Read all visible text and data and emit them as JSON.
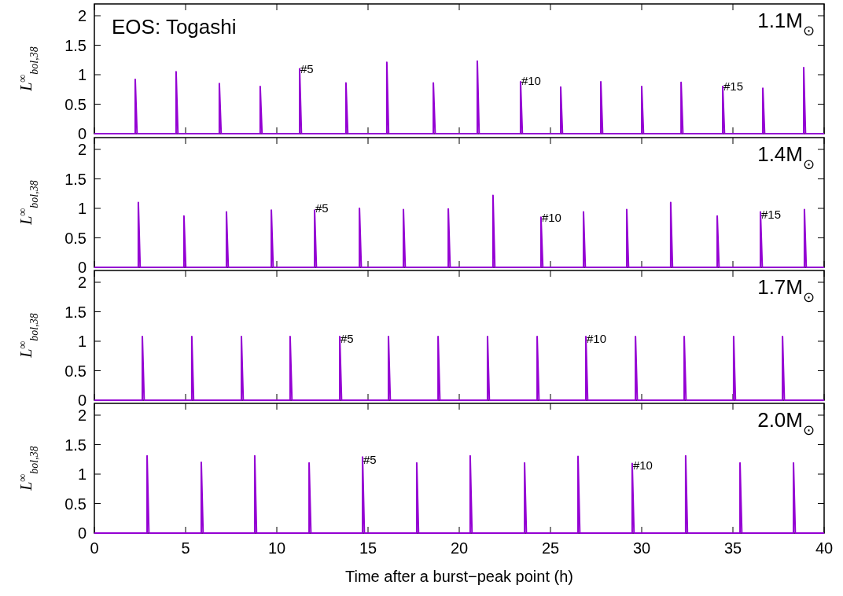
{
  "chart_data": [
    {
      "type": "line",
      "title": "1.1M$_{⊙}$",
      "ylabel": "L$^{∞}$$_{bol,38}$",
      "annotations": [
        "EOS: Togashi",
        {
          "text": "#5",
          "x": 11.25,
          "y": 1.1
        },
        {
          "text": "#10",
          "x": 23.36,
          "y": 0.9
        },
        {
          "text": "#15",
          "x": 34.44,
          "y": 0.8
        }
      ],
      "xlim": [
        0,
        40
      ],
      "ylim": [
        0,
        2.2
      ],
      "xticks": [
        0,
        5,
        10,
        15,
        20,
        25,
        30,
        35,
        40
      ],
      "yticks": [
        0,
        0.5,
        1,
        1.5,
        2
      ],
      "tick_labels": "y",
      "series": [
        {
          "color": "#9400d3",
          "x": [
            0,
            2.24,
            2.24,
            2.34,
            4.48,
            4.48,
            4.58,
            6.85,
            6.85,
            6.95,
            9.09,
            9.09,
            9.19,
            11.25,
            11.25,
            11.35,
            13.79,
            13.79,
            13.89,
            16.03,
            16.03,
            16.13,
            18.58,
            18.58,
            18.68,
            20.99,
            20.99,
            21.09,
            23.36,
            23.36,
            23.46,
            25.56,
            25.56,
            25.66,
            27.76,
            27.76,
            27.86,
            30,
            30,
            30.1,
            32.16,
            32.16,
            32.26,
            34.44,
            34.44,
            34.54,
            36.64,
            36.64,
            36.74,
            38.88,
            38.88,
            38.98,
            40
          ],
          "values": [
            0,
            0,
            0.92,
            0,
            0,
            1.05,
            0,
            0,
            0.85,
            0,
            0,
            0.8,
            0,
            0,
            1.1,
            0,
            0,
            0.86,
            0,
            0,
            1.21,
            0,
            0,
            0.86,
            0,
            0,
            1.23,
            0,
            0,
            0.88,
            0,
            0,
            0.79,
            0,
            0,
            0.88,
            0,
            0,
            0.8,
            0,
            0,
            0.87,
            0,
            0,
            0.8,
            0,
            0,
            0.77,
            0,
            0,
            1.12,
            0,
            0
          ]
        }
      ]
    },
    {
      "type": "line",
      "title": "1.4M$_{⊙}$",
      "ylabel": "L$^{∞}$$_{bol,38}$",
      "annotations": [
        {
          "text": "#5",
          "x": 12.07,
          "y": 1.0
        },
        {
          "text": "#10",
          "x": 24.48,
          "y": 0.85
        },
        {
          "text": "#15",
          "x": 36.51,
          "y": 0.9
        }
      ],
      "xlim": [
        0,
        40
      ],
      "ylim": [
        0,
        2.2
      ],
      "xticks": [
        0,
        5,
        10,
        15,
        20,
        25,
        30,
        35,
        40
      ],
      "yticks": [
        0,
        0.5,
        1,
        1.5,
        2
      ],
      "tick_labels": "y",
      "series": [
        {
          "color": "#9400d3",
          "x": [
            0,
            2.41,
            2.41,
            2.51,
            4.91,
            4.91,
            5.01,
            7.24,
            7.24,
            7.34,
            9.7,
            9.7,
            9.8,
            12.07,
            12.07,
            12.17,
            14.53,
            14.53,
            14.63,
            16.94,
            16.94,
            17.04,
            19.4,
            19.4,
            19.5,
            21.85,
            21.85,
            21.95,
            24.48,
            24.48,
            24.58,
            26.81,
            26.81,
            26.91,
            29.18,
            29.18,
            29.28,
            31.59,
            31.59,
            31.69,
            34.14,
            34.14,
            34.24,
            36.51,
            36.51,
            36.61,
            38.92,
            38.92,
            39.02,
            40
          ],
          "values": [
            0,
            0,
            1.1,
            0,
            0,
            0.87,
            0,
            0,
            0.94,
            0,
            0,
            0.97,
            0,
            0,
            0.97,
            0,
            0,
            1.0,
            0,
            0,
            0.98,
            0,
            0,
            0.99,
            0,
            0,
            1.22,
            0,
            0,
            0.85,
            0,
            0,
            0.94,
            0,
            0,
            0.98,
            0,
            0,
            1.1,
            0,
            0,
            0.87,
            0,
            0,
            0.94,
            0,
            0,
            0.98,
            0,
            0
          ]
        }
      ]
    },
    {
      "type": "line",
      "title": "1.7M$_{⊙}$",
      "ylabel": "L$^{∞}$$_{bol,38}$",
      "annotations": [
        {
          "text": "#5",
          "x": 13.45,
          "y": 1.05
        },
        {
          "text": "#10",
          "x": 26.94,
          "y": 1.05
        }
      ],
      "xlim": [
        0,
        40
      ],
      "ylim": [
        0,
        2.2
      ],
      "xticks": [
        0,
        5,
        10,
        15,
        20,
        25,
        30,
        35,
        40
      ],
      "yticks": [
        0,
        0.5,
        1,
        1.5,
        2
      ],
      "tick_labels": "y",
      "series": [
        {
          "color": "#9400d3",
          "x": [
            0,
            2.63,
            2.63,
            2.73,
            5.34,
            5.34,
            5.44,
            8.06,
            8.06,
            8.16,
            10.73,
            10.73,
            10.83,
            13.45,
            13.45,
            13.55,
            16.12,
            16.12,
            16.22,
            18.84,
            18.84,
            18.94,
            21.55,
            21.55,
            21.65,
            24.27,
            24.27,
            24.37,
            26.94,
            26.94,
            27.04,
            29.66,
            29.66,
            29.76,
            32.33,
            32.33,
            32.43,
            35.04,
            35.04,
            35.14,
            37.72,
            37.72,
            37.82,
            40
          ],
          "values": [
            0,
            0,
            1.08,
            0,
            0,
            1.08,
            0,
            0,
            1.08,
            0,
            0,
            1.08,
            0,
            0,
            1.08,
            0,
            0,
            1.08,
            0,
            0,
            1.08,
            0,
            0,
            1.08,
            0,
            0,
            1.08,
            0,
            0,
            1.08,
            0,
            0,
            1.08,
            0,
            0,
            1.08,
            0,
            0,
            1.08,
            0,
            0,
            1.08,
            0,
            0
          ]
        }
      ]
    },
    {
      "type": "line",
      "title": "2.0M$_{⊙}$",
      "ylabel": "L$^{∞}$$_{bol,38}$",
      "xlabel": "Time after a burst−peak point (h)",
      "annotations": [
        {
          "text": "#5",
          "x": 14.7,
          "y": 1.25
        },
        {
          "text": "#10",
          "x": 29.48,
          "y": 1.15
        }
      ],
      "xlim": [
        0,
        40
      ],
      "ylim": [
        0,
        2.2
      ],
      "xticks": [
        0,
        5,
        10,
        15,
        20,
        25,
        30,
        35,
        40
      ],
      "yticks": [
        0,
        0.5,
        1,
        1.5,
        2
      ],
      "series": [
        {
          "color": "#9400d3",
          "x": [
            0,
            2.89,
            2.89,
            2.99,
            5.86,
            5.86,
            5.96,
            8.79,
            8.79,
            8.89,
            11.77,
            11.77,
            11.87,
            14.7,
            14.7,
            14.8,
            17.67,
            17.67,
            17.77,
            20.6,
            20.6,
            20.7,
            23.58,
            23.58,
            23.68,
            26.51,
            26.51,
            26.61,
            29.48,
            29.48,
            29.58,
            32.41,
            32.41,
            32.51,
            35.39,
            35.39,
            35.49,
            38.32,
            38.32,
            38.42,
            40
          ],
          "values": [
            0,
            0,
            1.31,
            0,
            0,
            1.2,
            0,
            0,
            1.31,
            0,
            0,
            1.19,
            0,
            0,
            1.29,
            0,
            0,
            1.19,
            0,
            0,
            1.31,
            0,
            0,
            1.19,
            0,
            0,
            1.3,
            0,
            0,
            1.18,
            0,
            0,
            1.31,
            0,
            0,
            1.19,
            0,
            0,
            1.19,
            0,
            0
          ]
        }
      ]
    }
  ]
}
